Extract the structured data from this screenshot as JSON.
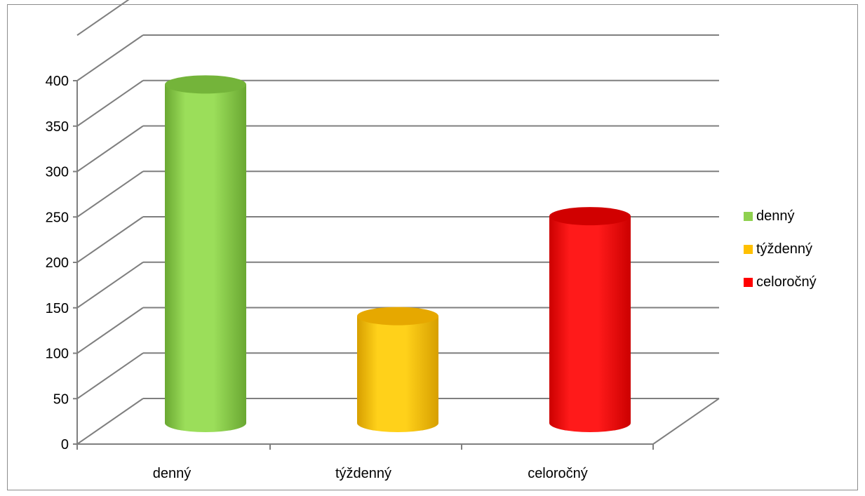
{
  "chart_data": {
    "type": "bar",
    "categories": [
      "denný",
      "týždenný",
      "celoročný"
    ],
    "series": [
      {
        "values": [
          380,
          125,
          235
        ]
      }
    ],
    "colors": [
      "#8fd14f",
      "#ffc000",
      "#ff0000"
    ],
    "ylim": [
      0,
      400
    ],
    "yticks": [
      0,
      50,
      100,
      150,
      200,
      250,
      300,
      350,
      400
    ],
    "title": "",
    "xlabel": "",
    "ylabel": "",
    "grid": true,
    "style": "3d-cylinder",
    "legend": {
      "position": "right",
      "entries": [
        "denný",
        "týždenný",
        "celoročný"
      ]
    }
  }
}
